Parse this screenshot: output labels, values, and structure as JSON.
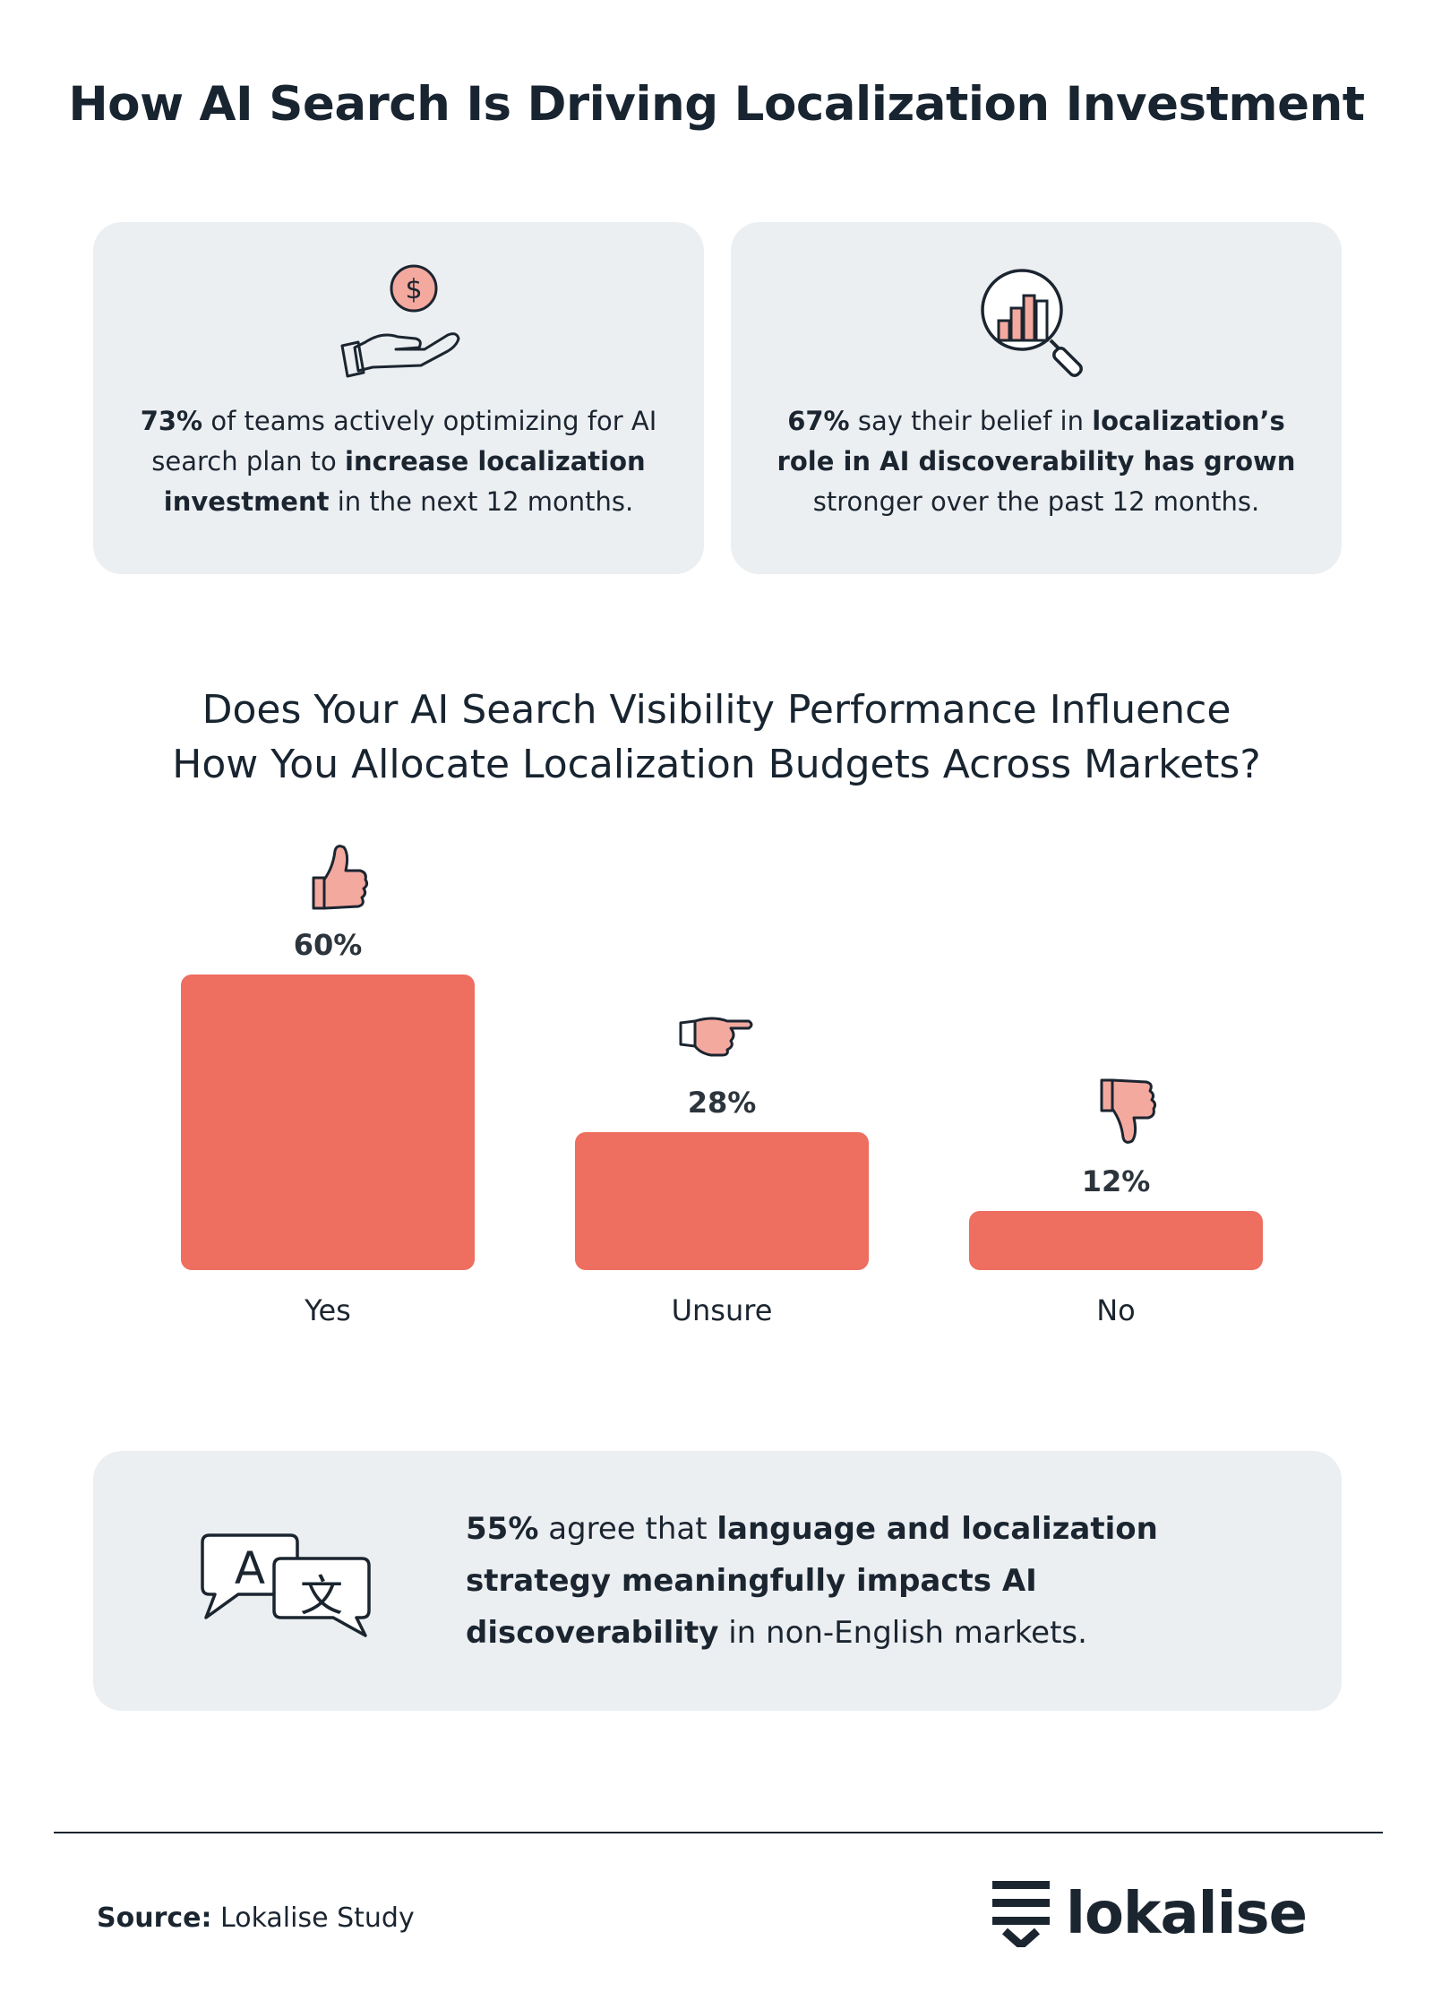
{
  "title": "How AI Search Is Driving Localization Investment",
  "cards": [
    {
      "icon": "hand-dollar-icon",
      "stat": "73%",
      "seg1": " of teams actively optimizing for AI search plan to ",
      "bold": "increase localization investment",
      "seg2": " in the next 12 months."
    },
    {
      "icon": "magnifier-bar-chart-icon",
      "stat": "67%",
      "seg1": " say their belief in ",
      "bold": "localization’s role in AI discoverability has grown",
      "seg2": " stronger over the past 12 months."
    }
  ],
  "question": {
    "line1": "Does Your AI Search Visibility Performance Influence",
    "line2": "How You Allocate Localization Budgets Across Markets?"
  },
  "chart_data": {
    "type": "bar",
    "title": "Does Your AI Search Visibility Performance Influence How You Allocate Localization Budgets Across Markets?",
    "categories": [
      "Yes",
      "Unsure",
      "No"
    ],
    "values": [
      60,
      28,
      12
    ],
    "value_labels": [
      "60%",
      "28%",
      "12%"
    ],
    "icons": [
      "thumbs-up-icon",
      "pointing-hand-icon",
      "thumbs-down-icon"
    ],
    "bar_color": "#ee6e60",
    "ylim": [
      0,
      60
    ],
    "grid": false
  },
  "bottom_card": {
    "icon": "translate-bubbles-icon",
    "stat": "55%",
    "seg1": " agree that ",
    "bold": "language and localization strategy meaningfully impacts AI discoverability",
    "seg2": " in non-English markets."
  },
  "source": {
    "label": "Source:",
    "value": " Lokalise Study"
  },
  "logo": {
    "text": "lokalise",
    "icon": "lokalise-logo-icon"
  },
  "colors": {
    "accent": "#ee6e60",
    "icon_fill": "#f4a99f",
    "card_bg": "#eceff2",
    "text": "#1b2530"
  }
}
